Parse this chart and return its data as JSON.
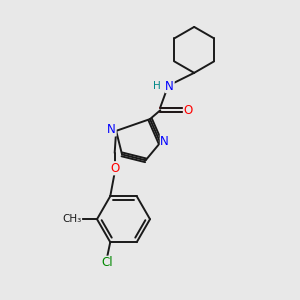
{
  "background_color": "#e8e8e8",
  "bond_color": "#1a1a1a",
  "N_color": "#0000ff",
  "O_color": "#ff0000",
  "Cl_color": "#008800",
  "H_color": "#008888",
  "figsize": [
    3.0,
    3.0
  ],
  "dpi": 100,
  "xlim": [
    0,
    10
  ],
  "ylim": [
    0,
    10
  ]
}
